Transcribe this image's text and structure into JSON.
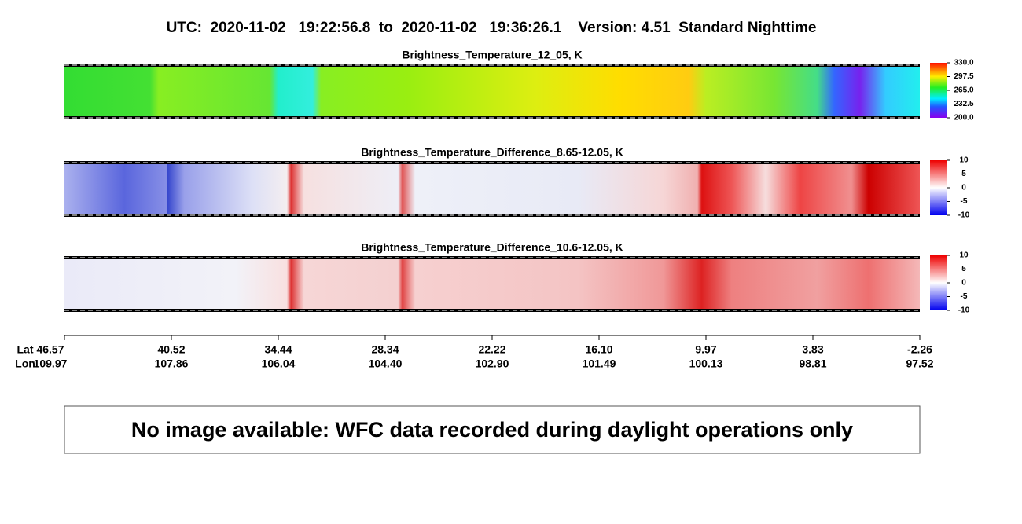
{
  "header": {
    "title": "UTC:  2020-11-02   19:22:56.8  to  2020-11-02   19:36:26.1    Version: 4.51  Standard Nighttime"
  },
  "panels": [
    {
      "title": "Brightness_Temperature_12_05, K",
      "colorbar_ticks": [
        "330.0",
        "297.5",
        "265.0",
        "232.5",
        "200.0"
      ]
    },
    {
      "title": "Brightness_Temperature_Difference_8.65-12.05, K",
      "colorbar_ticks": [
        "10",
        "5",
        "0",
        "-5",
        "-10"
      ]
    },
    {
      "title": "Brightness_Temperature_Difference_10.6-12.05, K",
      "colorbar_ticks": [
        "10",
        "5",
        "0",
        "-5",
        "-10"
      ]
    }
  ],
  "axis": {
    "lat_label": "Lat",
    "lon_label": "Lon",
    "lat": [
      "46.57",
      "40.52",
      "34.44",
      "28.34",
      "22.22",
      "16.10",
      "9.97",
      "3.83",
      "-2.26"
    ],
    "lon": [
      "109.97",
      "107.86",
      "106.04",
      "104.40",
      "102.90",
      "101.49",
      "100.13",
      "98.81",
      "97.52"
    ]
  },
  "note": "No image available: WFC data recorded during daylight operations only"
}
